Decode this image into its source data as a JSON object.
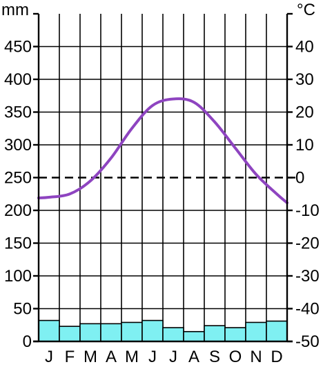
{
  "chart_data": {
    "type": "climate",
    "categories": [
      "J",
      "F",
      "M",
      "A",
      "M",
      "J",
      "J",
      "A",
      "S",
      "O",
      "N",
      "D"
    ],
    "left_axis": {
      "unit": "mm",
      "ylim": [
        0,
        500
      ],
      "ticks": [
        0,
        50,
        100,
        150,
        200,
        250,
        300,
        350,
        400,
        450
      ],
      "tick_labels": [
        "0",
        "50",
        "100",
        "150",
        "200",
        "250",
        "300",
        "350",
        "400",
        "450"
      ]
    },
    "right_axis": {
      "unit": "°C",
      "ylim": [
        -50,
        50
      ],
      "ticks": [
        -50,
        -40,
        -30,
        -20,
        -10,
        0,
        10,
        20,
        30,
        40
      ],
      "tick_labels": [
        "-50",
        "-40",
        "-30",
        "-20",
        "-10",
        "0",
        "10",
        "20",
        "30",
        "40"
      ]
    },
    "series": [
      {
        "type": "bar",
        "axis": "left",
        "values": [
          32,
          23,
          27,
          27,
          29,
          32,
          21,
          15,
          24,
          21,
          29,
          31
        ],
        "color": "#7ff0f2"
      },
      {
        "type": "line",
        "axis": "right",
        "values": [
          -6,
          -5,
          -1,
          6,
          15,
          22,
          24,
          23,
          17,
          9,
          1,
          -5
        ],
        "color": "#8e44c0"
      }
    ],
    "zero_line": {
      "value": 0,
      "style": "dashed"
    },
    "grid": true
  }
}
